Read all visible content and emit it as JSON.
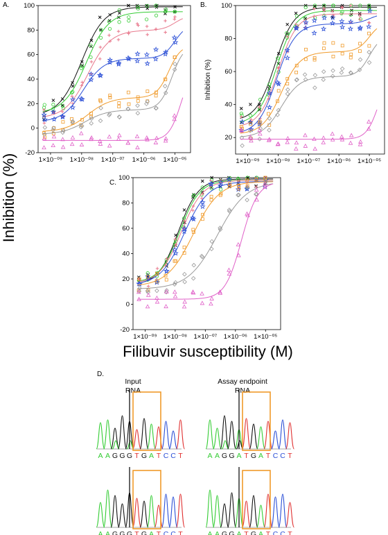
{
  "ylabel": "Inhibition (%)",
  "xlabel": "Filibuvir susceptibility (M)",
  "chart_data": [
    {
      "panel": "A.",
      "type": "scatter",
      "ylabel": "",
      "ylim": [
        -20,
        100
      ],
      "yticks": [
        "-20",
        "0",
        "20",
        "40",
        "60",
        "80",
        "100"
      ],
      "xticks": [
        "1×10⁻⁰⁹",
        "1×10⁻⁰⁸",
        "1×10⁻⁰⁷",
        "1×10⁻⁰⁶",
        "1×10⁻⁰⁵"
      ],
      "series": [
        {
          "color": "#111111",
          "marker": "x",
          "bottom": 10,
          "top": 99,
          "logIC50": -8.0,
          "hill": 1.2
        },
        {
          "color": "#33cc33",
          "marker": "circle",
          "bottom": 12,
          "top": 95,
          "logIC50": -7.85,
          "hill": 1.2
        },
        {
          "color": "#e8788c",
          "marker": "plus",
          "bottom": 8,
          "top": 80,
          "logIC50": -7.8,
          "hill": 1.2,
          "topRise": [
            -5.0,
            92
          ]
        },
        {
          "color": "#2b4fd6",
          "marker": "star",
          "bottom": 5,
          "top": 57,
          "logIC50": -7.95,
          "hill": 1.3,
          "topRise": [
            -5.0,
            85
          ]
        },
        {
          "color": "#f09a2a",
          "marker": "square",
          "bottom": -3,
          "top": 25,
          "logIC50": -7.8,
          "hill": 1.2,
          "topRise": [
            -5.2,
            68
          ]
        },
        {
          "color": "#999999",
          "marker": "diamond",
          "bottom": -5,
          "top": 15,
          "logIC50": -7.9,
          "hill": 1.2,
          "topRise": [
            -5.1,
            68
          ]
        },
        {
          "color": "#e060c8",
          "marker": "triangle",
          "bottom": -10,
          "top": -10,
          "logIC50": -6.0,
          "hill": 1.0,
          "topRise": [
            -4.8,
            52
          ]
        }
      ]
    },
    {
      "panel": "B.",
      "type": "scatter",
      "ylabel": "Inhibition (%)",
      "ylim": [
        10,
        100
      ],
      "yticks": [
        "20",
        "40",
        "60",
        "80",
        "100"
      ],
      "xticks": [
        "1×10⁻⁰⁹",
        "1×10⁻⁰⁸",
        "1×10⁻⁰⁷",
        "1×10⁻⁰⁶",
        "1×10⁻⁰⁵"
      ],
      "series": [
        {
          "color": "#111111",
          "marker": "x",
          "bottom": 30,
          "top": 99,
          "logIC50": -8.1,
          "hill": 1.4
        },
        {
          "color": "#33cc33",
          "marker": "circle",
          "bottom": 28,
          "top": 97,
          "logIC50": -8.05,
          "hill": 1.4
        },
        {
          "color": "#e8788c",
          "marker": "plus",
          "bottom": 26,
          "top": 95,
          "logIC50": -8.0,
          "hill": 1.4
        },
        {
          "color": "#2b4fd6",
          "marker": "star",
          "bottom": 22,
          "top": 89,
          "logIC50": -8.05,
          "hill": 1.4,
          "topRise": [
            -5.0,
            95
          ]
        },
        {
          "color": "#f09a2a",
          "marker": "square",
          "bottom": 22,
          "top": 72,
          "logIC50": -7.9,
          "hill": 1.4,
          "topRise": [
            -5.0,
            90
          ]
        },
        {
          "color": "#999999",
          "marker": "diamond",
          "bottom": 20,
          "top": 57,
          "logIC50": -7.9,
          "hill": 1.4,
          "topRise": [
            -5.0,
            82
          ]
        },
        {
          "color": "#e060c8",
          "marker": "triangle",
          "bottom": 19,
          "top": 19,
          "logIC50": -6.0,
          "hill": 1.0,
          "topRise": [
            -4.7,
            60
          ]
        }
      ]
    },
    {
      "panel": "C.",
      "type": "scatter",
      "ylabel": "",
      "ylim": [
        -20,
        100
      ],
      "yticks": [
        "-20",
        "0",
        "20",
        "40",
        "60",
        "80",
        "100"
      ],
      "xticks": [
        "1×10⁻⁰⁹",
        "1×10⁻⁰⁸",
        "1×10⁻⁰⁷",
        "1×10⁻⁰⁶",
        "1×10⁻⁰⁵"
      ],
      "series": [
        {
          "color": "#111111",
          "marker": "x",
          "bottom": 15,
          "top": 99,
          "logIC50": -7.9,
          "hill": 1.3
        },
        {
          "color": "#33cc33",
          "marker": "circle",
          "bottom": 17,
          "top": 98,
          "logIC50": -7.85,
          "hill": 1.3
        },
        {
          "color": "#e8788c",
          "marker": "plus",
          "bottom": 16,
          "top": 98,
          "logIC50": -7.8,
          "hill": 1.2
        },
        {
          "color": "#2b4fd6",
          "marker": "star",
          "bottom": 15,
          "top": 97,
          "logIC50": -7.7,
          "hill": 1.1
        },
        {
          "color": "#f09a2a",
          "marker": "square",
          "bottom": 14,
          "top": 97,
          "logIC50": -7.4,
          "hill": 1.0
        },
        {
          "color": "#999999",
          "marker": "diamond",
          "bottom": 12,
          "top": 97,
          "logIC50": -6.6,
          "hill": 0.9
        },
        {
          "color": "#e060c8",
          "marker": "triangle",
          "bottom": 4,
          "top": 97,
          "logIC50": -5.8,
          "hill": 1.6
        }
      ]
    }
  ],
  "sequencing": {
    "panel": "D.",
    "column_titles": [
      {
        "line1": "Input",
        "line2": "RNA"
      },
      {
        "line1": "Assay endpoint",
        "line2": "RNA"
      }
    ],
    "traces": [
      {
        "bases": [
          "A",
          "A",
          "G",
          "G",
          "G",
          "T",
          "G",
          "A",
          "T",
          "C",
          "C",
          "T"
        ]
      },
      {
        "bases": [
          "A",
          "A",
          "G",
          "G",
          "A",
          "T",
          "G",
          "A",
          "T",
          "C",
          "C",
          "T"
        ]
      },
      {
        "bases": [
          "A",
          "A",
          "G",
          "G",
          "G",
          "T",
          "G",
          "A",
          "T",
          "C",
          "C",
          "T"
        ]
      },
      {
        "bases": [
          "A",
          "A",
          "G",
          "G",
          "A",
          "T",
          "G",
          "A",
          "T",
          "C",
          "C",
          "T"
        ]
      }
    ],
    "base_colors": {
      "A": "#33cc33",
      "G": "#111111",
      "T": "#e03030",
      "C": "#2b4fd6"
    },
    "highlight_color": "#f09a2a"
  }
}
